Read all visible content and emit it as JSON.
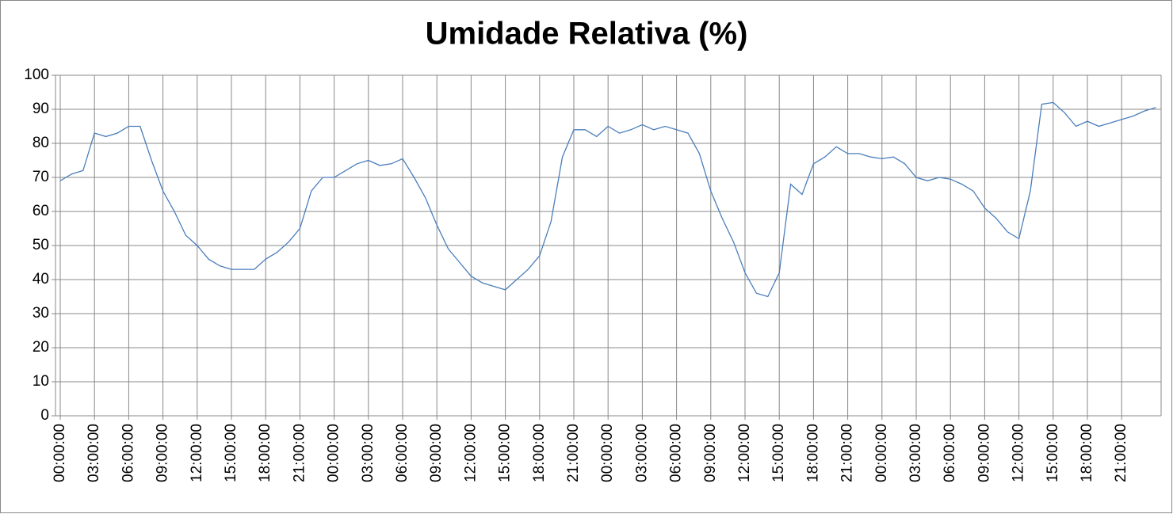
{
  "chart_data": {
    "type": "line",
    "title": "Umidade Relativa (%)",
    "categories": [
      "00:00:00",
      null,
      null,
      "03:00:00",
      null,
      null,
      "06:00:00",
      null,
      null,
      "09:00:00",
      null,
      null,
      "12:00:00",
      null,
      null,
      "15:00:00",
      null,
      null,
      "18:00:00",
      null,
      null,
      "21:00:00",
      null,
      null,
      "00:00:00",
      null,
      null,
      "03:00:00",
      null,
      null,
      "06:00:00",
      null,
      null,
      "09:00:00",
      null,
      null,
      "12:00:00",
      null,
      null,
      "15:00:00",
      null,
      null,
      "18:00:00",
      null,
      null,
      "21:00:00",
      null,
      null,
      "00:00:00",
      null,
      null,
      "03:00:00",
      null,
      null,
      "06:00:00",
      null,
      null,
      "09:00:00",
      null,
      null,
      "12:00:00",
      null,
      null,
      "15:00:00",
      null,
      null,
      "18:00:00",
      null,
      null,
      "21:00:00",
      null,
      null,
      "00:00:00",
      null,
      null,
      "03:00:00",
      null,
      null,
      "06:00:00",
      null,
      null,
      "09:00:00",
      null,
      null,
      "12:00:00",
      null,
      null,
      "15:00:00",
      null,
      null,
      "18:00:00",
      null,
      null,
      "21:00:00",
      null,
      null,
      null
    ],
    "values": [
      69,
      71,
      72,
      83,
      82,
      83,
      85,
      85,
      75,
      66,
      60,
      53,
      50,
      46,
      44,
      43,
      43,
      43,
      46,
      48,
      51,
      55,
      66,
      70,
      70,
      72,
      74,
      75,
      73.5,
      74,
      75.5,
      70,
      64,
      56,
      49,
      45,
      41,
      39,
      38,
      37,
      40,
      43,
      47,
      57,
      76,
      84,
      84,
      82,
      85,
      83,
      84,
      85.5,
      84,
      85,
      84,
      83,
      77,
      66,
      58,
      51,
      42,
      36,
      35,
      42,
      68,
      65,
      74,
      76,
      79,
      77,
      77,
      76,
      75.5,
      76,
      74,
      70,
      69,
      70,
      69.5,
      68,
      66,
      61,
      58,
      54,
      52,
      66,
      91.5,
      92,
      89,
      85,
      86.5,
      85,
      86,
      87,
      88,
      89.5,
      90.5
    ],
    "color": "#4a7ebb",
    "ylim": [
      0,
      100
    ],
    "yticks": [
      0,
      10,
      20,
      30,
      40,
      50,
      60,
      70,
      80,
      90,
      100
    ],
    "grid": true
  }
}
